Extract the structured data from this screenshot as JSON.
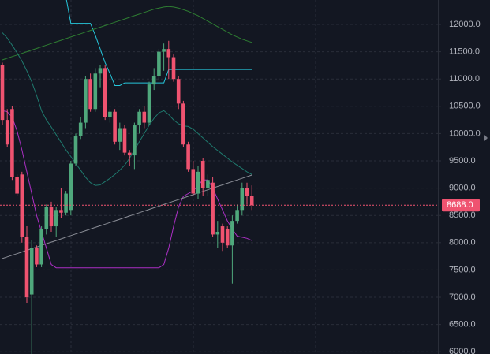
{
  "chart_data": {
    "type": "candlestick",
    "up_color": "#4fa87c",
    "down_color": "#ef5370",
    "ylim": [
      5960,
      12448
    ],
    "yticks": [
      {
        "value": 12000,
        "label": "12000.0"
      },
      {
        "value": 11500,
        "label": "11500.0"
      },
      {
        "value": 11000,
        "label": "11000.0"
      },
      {
        "value": 10500,
        "label": "10500.0"
      },
      {
        "value": 10000,
        "label": "10000.0"
      },
      {
        "value": 9500,
        "label": "9500.0"
      },
      {
        "value": 9000,
        "label": "9000.0"
      },
      {
        "value": 8500,
        "label": "8500.0"
      },
      {
        "value": 8000,
        "label": "8000.0"
      },
      {
        "value": 7500,
        "label": "7500.0"
      },
      {
        "value": 7000,
        "label": "7000.0"
      },
      {
        "value": 6500,
        "label": "6500.0"
      },
      {
        "value": 6000,
        "label": "6000.0"
      }
    ],
    "grid": true,
    "last_price": {
      "value": 8688,
      "label": "8688.0",
      "color": "#ef5370"
    },
    "open": [
      11250,
      10250,
      10450,
      9200,
      9250,
      8100,
      7050,
      7900,
      7600,
      8250,
      8650,
      8300,
      8600,
      8550,
      8600,
      9450,
      9950,
      10200,
      11000,
      10450,
      11100,
      11200,
      10300,
      10400,
      9850,
      10100,
      9650,
      9600,
      10150,
      10400,
      10200,
      10900,
      11050,
      11500,
      11550,
      11400,
      11000,
      10550,
      9800,
      9350,
      8900,
      9500,
      9000,
      9100,
      8150,
      8300,
      8250,
      7950,
      8400,
      8600,
      9000,
      8850
    ],
    "high": [
      11300,
      10450,
      10500,
      9250,
      9300,
      8300,
      8050,
      7950,
      8300,
      8700,
      8750,
      8650,
      9000,
      8950,
      9500,
      10000,
      10300,
      11050,
      11100,
      11200,
      11250,
      11250,
      10450,
      10450,
      10200,
      10150,
      9700,
      10200,
      10450,
      10500,
      10950,
      11200,
      11550,
      11650,
      11700,
      11450,
      11050,
      10600,
      9850,
      9500,
      9400,
      9550,
      9250,
      9200,
      8400,
      8350,
      8300,
      8500,
      8700,
      9100,
      9100,
      9050
    ],
    "low": [
      10150,
      9750,
      9150,
      8850,
      8000,
      6900,
      5960,
      7550,
      7550,
      8150,
      8200,
      8100,
      8450,
      8500,
      8500,
      9400,
      9900,
      10100,
      10400,
      10400,
      10850,
      10250,
      10200,
      9800,
      9700,
      9600,
      9400,
      9350,
      10000,
      10100,
      10150,
      10800,
      11000,
      11150,
      11000,
      10950,
      10450,
      9750,
      9300,
      8850,
      8800,
      8850,
      8850,
      8100,
      7900,
      7850,
      7900,
      7250,
      8350,
      8500,
      8700,
      8600
    ],
    "close": [
      10250,
      9800,
      9200,
      8900,
      8100,
      7000,
      7900,
      7600,
      8250,
      8650,
      8300,
      8600,
      8550,
      8900,
      9450,
      9950,
      10200,
      11000,
      10450,
      11100,
      11200,
      10300,
      10400,
      9850,
      10100,
      9650,
      9600,
      10150,
      10400,
      10200,
      10900,
      11050,
      11500,
      11550,
      11400,
      11000,
      10550,
      9800,
      9350,
      8900,
      9300,
      9000,
      9150,
      8150,
      8200,
      8000,
      7950,
      8400,
      8600,
      9000,
      8850,
      8688
    ],
    "series": [
      {
        "color": "#26c6da",
        "values": [
          null,
          null,
          null,
          null,
          null,
          null,
          null,
          null,
          null,
          null,
          null,
          null,
          null,
          12500,
          12020,
          12020,
          12020,
          12020,
          12020,
          11800,
          11550,
          11300,
          11100,
          10880,
          10880,
          10930,
          10930,
          10930,
          10930,
          10930,
          10930,
          10930,
          10930,
          10930,
          11175,
          11175,
          11175,
          11175,
          11175,
          11175,
          11175,
          11175,
          11175,
          11175,
          11175,
          11175,
          11175,
          11175,
          11175,
          11175,
          11175,
          11175
        ]
      },
      {
        "color": "#2e7d32",
        "values": [
          11350,
          11380,
          11410,
          11440,
          11470,
          11500,
          11530,
          11560,
          11590,
          11620,
          11650,
          11680,
          11710,
          11740,
          11770,
          11800,
          11830,
          11860,
          11890,
          11920,
          11950,
          11980,
          12010,
          12040,
          12070,
          12100,
          12130,
          12160,
          12190,
          12220,
          12250,
          12280,
          12300,
          12320,
          12330,
          12320,
          12300,
          12270,
          12240,
          12200,
          12160,
          12110,
          12060,
          12010,
          11960,
          11910,
          11860,
          11810,
          11770,
          11730,
          11700,
          11670
        ]
      },
      {
        "color": "#1f7a6e",
        "values": [
          11850,
          11750,
          11620,
          11480,
          11330,
          11150,
          10950,
          10700,
          10420,
          10250,
          10120,
          9980,
          9840,
          9700,
          9580,
          9450,
          9330,
          9200,
          9100,
          9050,
          9060,
          9120,
          9180,
          9250,
          9330,
          9420,
          9550,
          9700,
          9850,
          10000,
          10150,
          10280,
          10380,
          10420,
          10350,
          10250,
          10180,
          10140,
          10130,
          10080,
          10000,
          9920,
          9840,
          9760,
          9690,
          9620,
          9550,
          9480,
          9420,
          9360,
          9300,
          9250
        ]
      },
      {
        "color": "#ab2fc4",
        "values": [
          10420,
          10400,
          10300,
          10050,
          9700,
          9300,
          8900,
          8500,
          8200,
          7900,
          7600,
          7540,
          7540,
          7540,
          7540,
          7540,
          7540,
          7540,
          7540,
          7540,
          7540,
          7540,
          7540,
          7540,
          7540,
          7540,
          7540,
          7540,
          7540,
          7540,
          7540,
          7540,
          7540,
          7600,
          7900,
          8300,
          8650,
          8850,
          8900,
          8950,
          9050,
          9150,
          9150,
          9000,
          8800,
          8600,
          8400,
          8250,
          8120,
          8100,
          8080,
          8040
        ]
      },
      {
        "color": "#8a8d96",
        "values": [
          7710,
          7740,
          7770,
          7800,
          7830,
          7860,
          7890,
          7920,
          7950,
          7980,
          8010,
          8040,
          8070,
          8100,
          8130,
          8160,
          8190,
          8220,
          8250,
          8280,
          8310,
          8340,
          8370,
          8400,
          8430,
          8460,
          8490,
          8520,
          8550,
          8580,
          8610,
          8640,
          8670,
          8700,
          8730,
          8760,
          8790,
          8820,
          8850,
          8880,
          8910,
          8940,
          8970,
          9000,
          9030,
          9060,
          9090,
          9120,
          9150,
          9180,
          9210,
          9240
        ]
      }
    ]
  }
}
